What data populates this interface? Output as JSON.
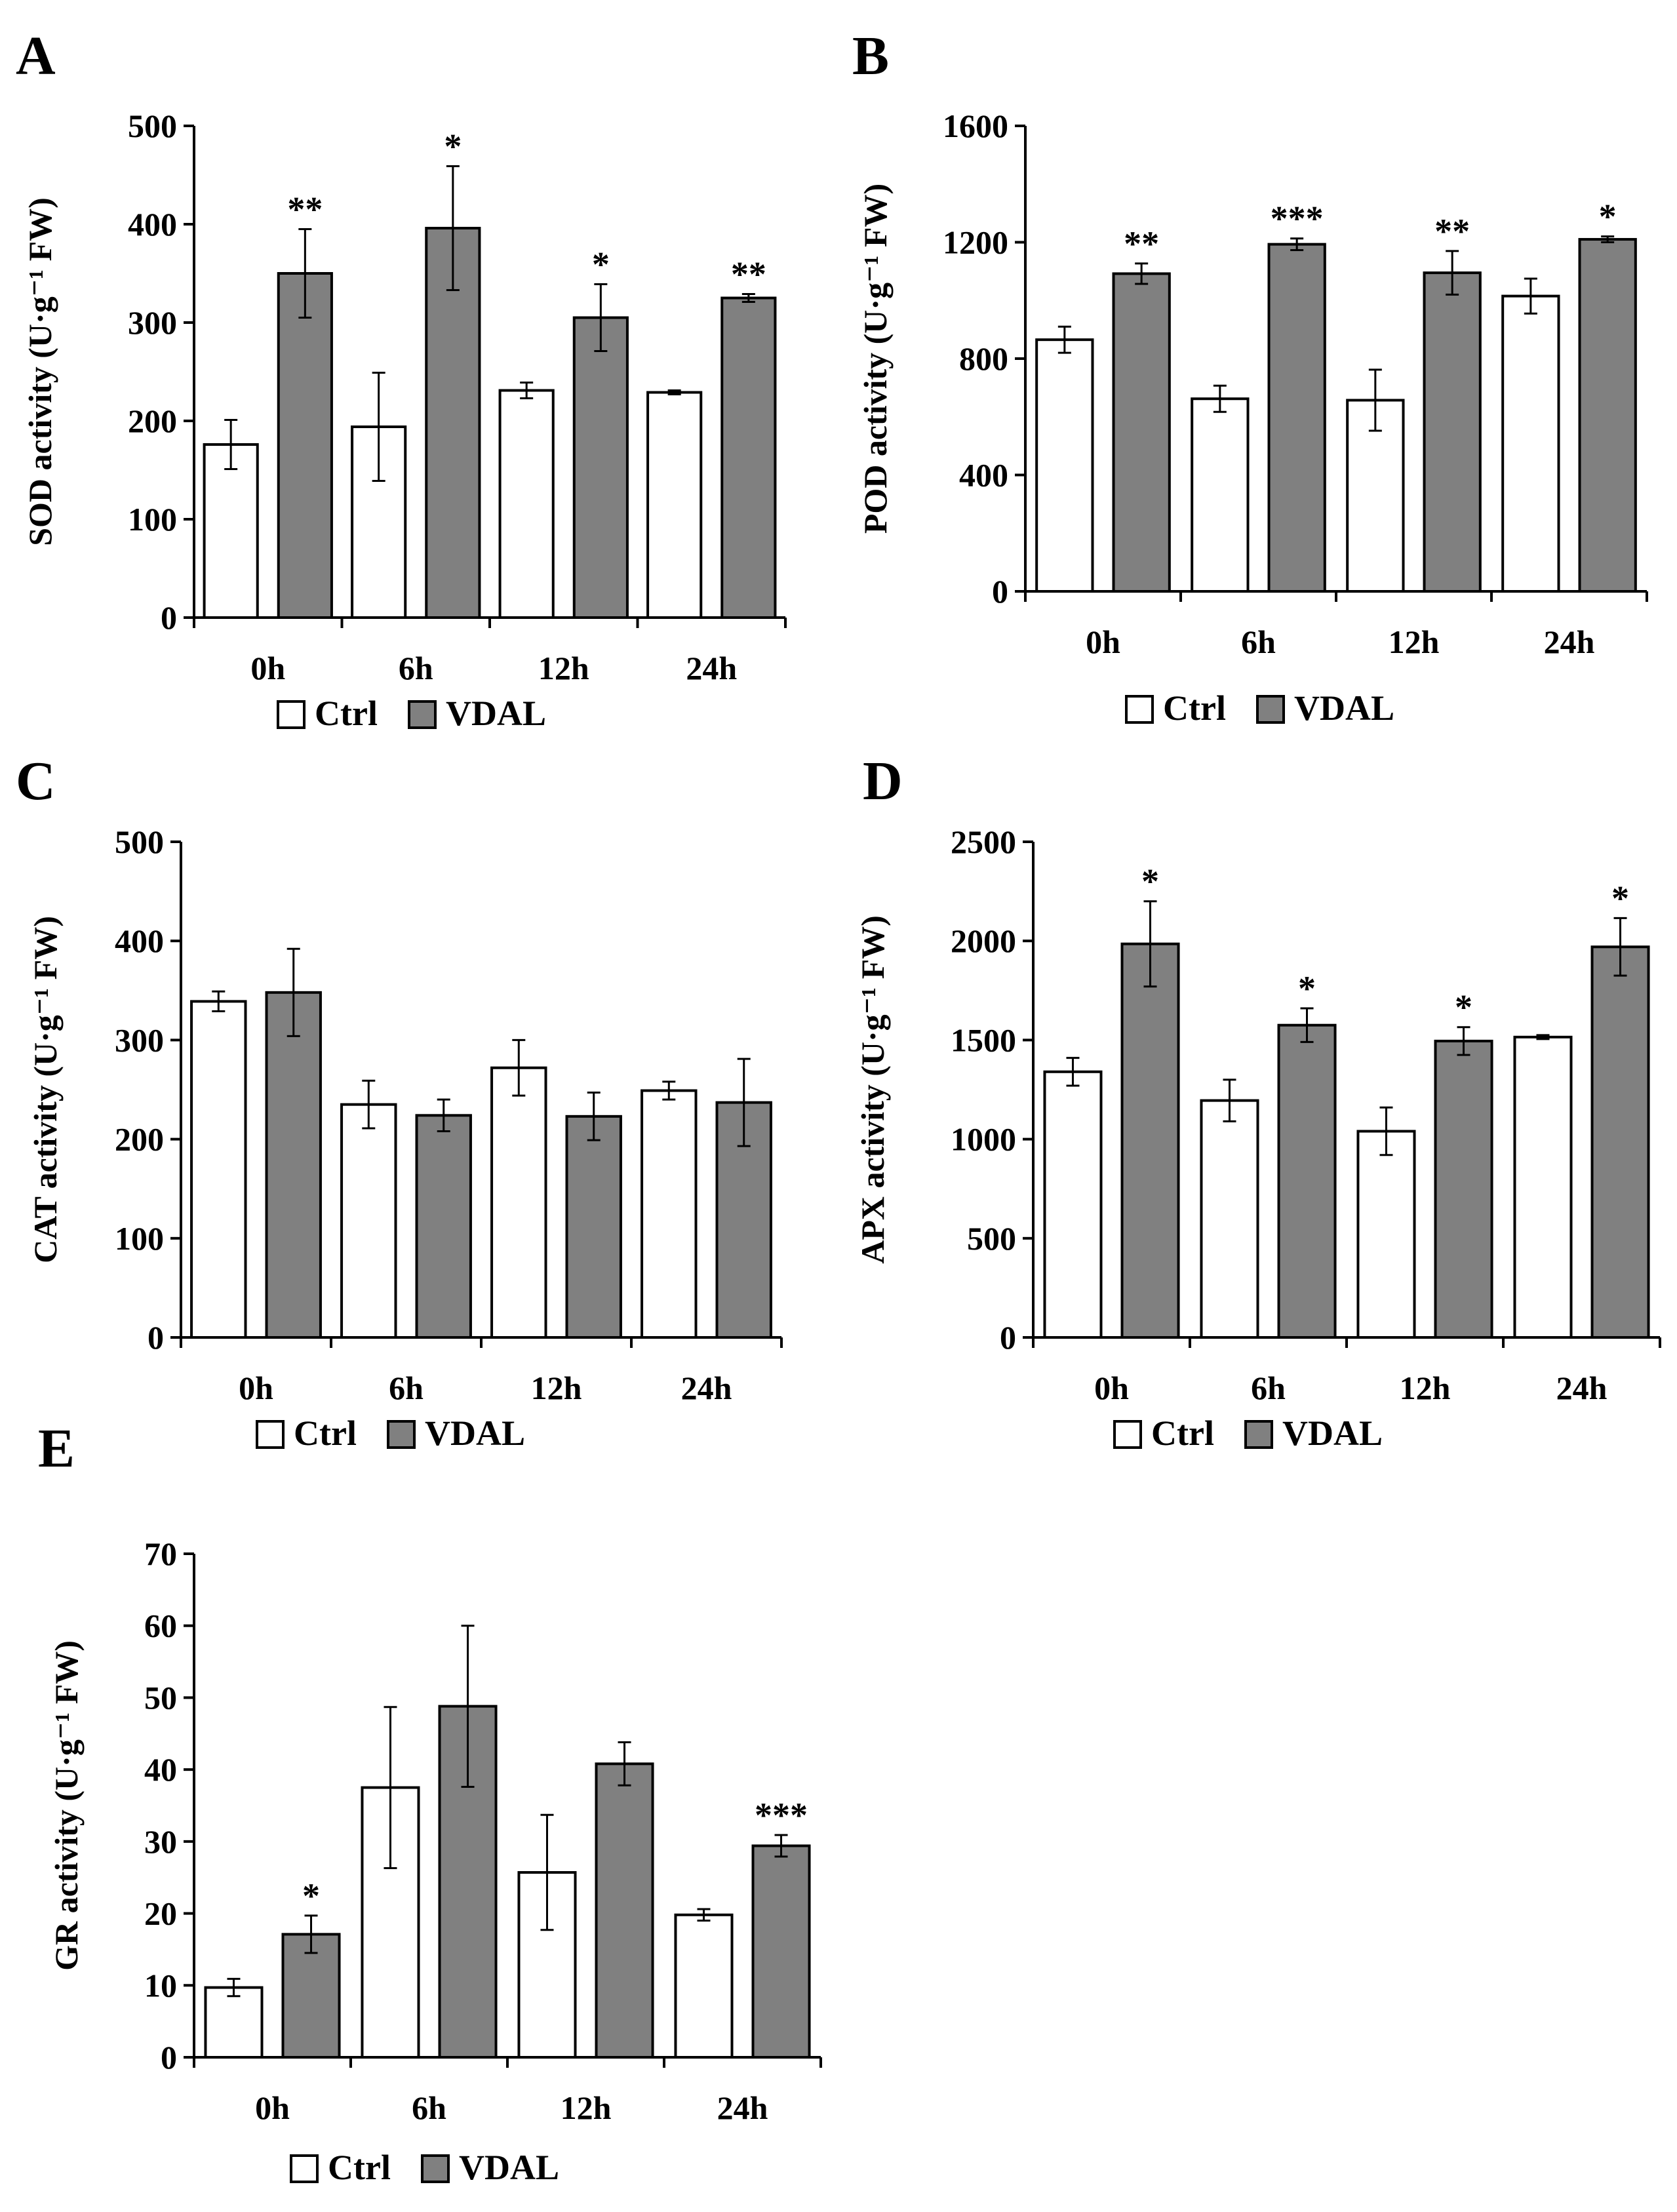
{
  "colors": {
    "ctrl_fill": "#ffffff",
    "vdal_fill": "#808080",
    "stroke": "#000000"
  },
  "chart_data": [
    {
      "panel": "A",
      "type": "bar",
      "ylabel": "SOD activity (U·g⁻¹ FW)",
      "categories": [
        "0h",
        "6h",
        "12h",
        "24h"
      ],
      "ylim": [
        0,
        500
      ],
      "yticks": [
        0,
        100,
        200,
        300,
        400,
        500
      ],
      "series": [
        {
          "name": "Ctrl",
          "values": [
            176,
            194,
            231,
            229
          ],
          "errors": [
            25,
            55,
            8,
            2
          ]
        },
        {
          "name": "VDAL",
          "values": [
            350,
            396,
            305,
            325
          ],
          "errors": [
            45,
            63,
            34,
            4
          ]
        }
      ],
      "significance": [
        "**",
        "*",
        "*",
        "**"
      ],
      "legend": [
        "Ctrl",
        "VDAL"
      ]
    },
    {
      "panel": "B",
      "type": "bar",
      "ylabel": "POD activity (U·g⁻¹ FW)",
      "categories": [
        "0h",
        "6h",
        "12h",
        "24h"
      ],
      "ylim": [
        0,
        1600
      ],
      "yticks": [
        0,
        400,
        800,
        1200,
        1600
      ],
      "series": [
        {
          "name": "Ctrl",
          "values": [
            865,
            662,
            657,
            1015
          ],
          "errors": [
            45,
            45,
            105,
            60
          ]
        },
        {
          "name": "VDAL",
          "values": [
            1092,
            1193,
            1095,
            1210
          ],
          "errors": [
            35,
            20,
            75,
            10
          ]
        }
      ],
      "significance": [
        "**",
        "***",
        "**",
        "*"
      ],
      "legend": [
        "Ctrl",
        "VDAL"
      ]
    },
    {
      "panel": "C",
      "type": "bar",
      "ylabel": "CAT activity (U·g⁻¹ FW)",
      "categories": [
        "0h",
        "6h",
        "12h",
        "24h"
      ],
      "ylim": [
        0,
        500
      ],
      "yticks": [
        0,
        100,
        200,
        300,
        400,
        500
      ],
      "series": [
        {
          "name": "Ctrl",
          "values": [
            339,
            235,
            272,
            249
          ],
          "errors": [
            10,
            24,
            28,
            9
          ]
        },
        {
          "name": "VDAL",
          "values": [
            348,
            224,
            223,
            237
          ],
          "errors": [
            44,
            16,
            24,
            44
          ]
        }
      ],
      "significance": [
        "",
        "",
        "",
        ""
      ],
      "legend": [
        "Ctrl",
        "VDAL"
      ]
    },
    {
      "panel": "D",
      "type": "bar",
      "ylabel": "APX activity (U·g⁻¹ FW)",
      "categories": [
        "0h",
        "6h",
        "12h",
        "24h"
      ],
      "ylim": [
        0,
        2500
      ],
      "yticks": [
        0,
        500,
        1000,
        1500,
        2000,
        2500
      ],
      "series": [
        {
          "name": "Ctrl",
          "values": [
            1340,
            1195,
            1040,
            1515
          ],
          "errors": [
            70,
            105,
            120,
            10
          ]
        },
        {
          "name": "VDAL",
          "values": [
            1985,
            1575,
            1495,
            1970
          ],
          "errors": [
            215,
            85,
            70,
            145
          ]
        }
      ],
      "significance": [
        "*",
        "*",
        "*",
        "*"
      ],
      "legend": [
        "Ctrl",
        "VDAL"
      ]
    },
    {
      "panel": "E",
      "type": "bar",
      "ylabel": "GR activity (U·g⁻¹ FW)",
      "categories": [
        "0h",
        "6h",
        "12h",
        "24h"
      ],
      "ylim": [
        0,
        70
      ],
      "yticks": [
        0,
        10,
        20,
        30,
        40,
        50,
        60,
        70
      ],
      "series": [
        {
          "name": "Ctrl",
          "values": [
            9.7,
            37.5,
            25.7,
            19.8
          ],
          "errors": [
            1.2,
            11.2,
            8.0,
            0.8
          ]
        },
        {
          "name": "VDAL",
          "values": [
            17.1,
            48.8,
            40.8,
            29.4
          ],
          "errors": [
            2.6,
            11.2,
            3.0,
            1.5
          ]
        }
      ],
      "significance": [
        "*",
        "",
        "",
        "***"
      ],
      "legend": [
        "Ctrl",
        "VDAL"
      ]
    }
  ]
}
